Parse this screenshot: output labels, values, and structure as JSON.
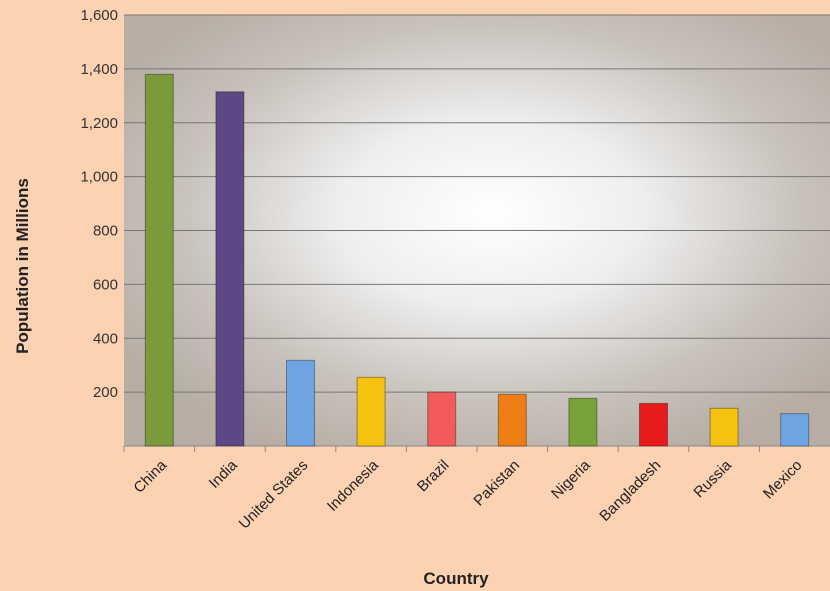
{
  "chart_data": {
    "type": "bar",
    "title": "",
    "xlabel": "Country",
    "ylabel": "Population in Millions",
    "ylim": [
      0,
      1600
    ],
    "yticks": [
      200,
      400,
      600,
      800,
      1000,
      1200,
      1400,
      1600
    ],
    "ytick_labels": [
      "200",
      "400",
      "600",
      "800",
      "1,000",
      "1,200",
      "1,400",
      "1,600"
    ],
    "grid": true,
    "legend": "none",
    "categories": [
      "China",
      "India",
      "United States",
      "Indonesia",
      "Brazil",
      "Pakistan",
      "Nigeria",
      "Bangladesh",
      "Russia",
      "Mexico"
    ],
    "values": [
      1380,
      1315,
      318,
      255,
      200,
      192,
      177,
      158,
      140,
      120
    ],
    "bar_colors": [
      "#7a9a3c",
      "#5e4785",
      "#6fa4e2",
      "#f5c20f",
      "#f35b5b",
      "#ee7d16",
      "#78a13a",
      "#e81a1a",
      "#f5c20f",
      "#6fa4e2"
    ]
  }
}
